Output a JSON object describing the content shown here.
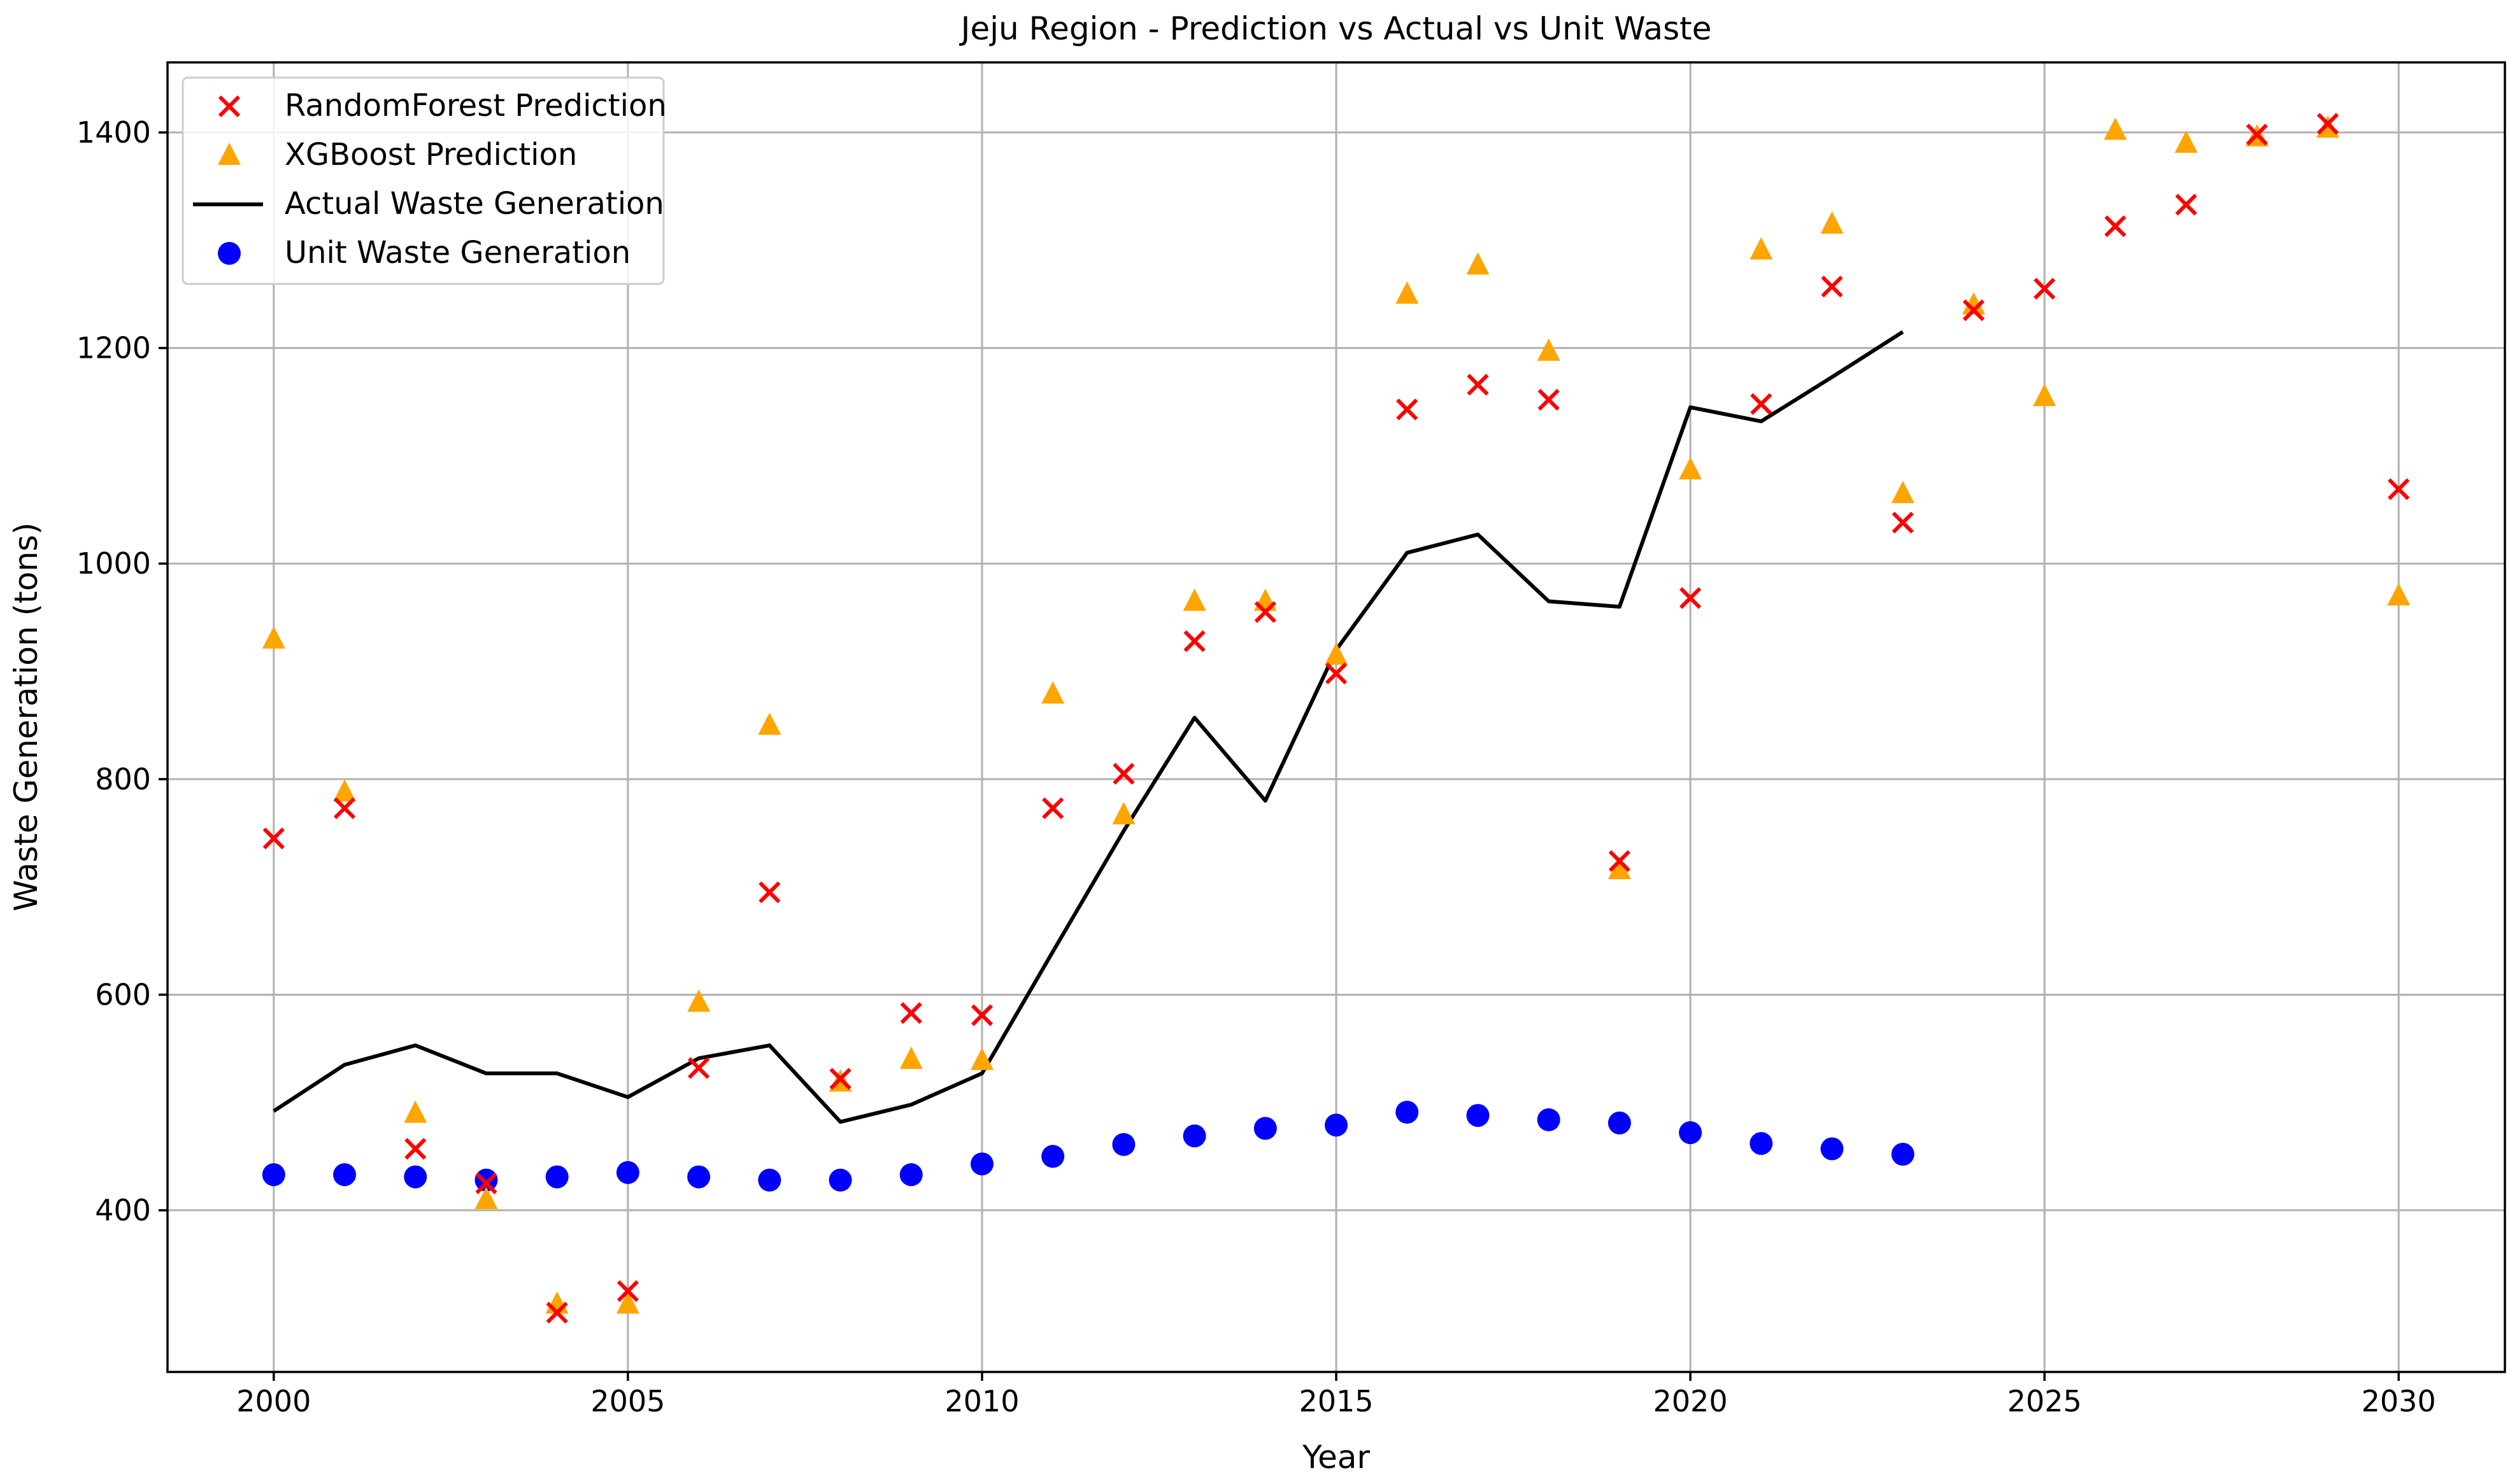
{
  "chart_data": {
    "type": "scatter",
    "title": "Jeju Region - Prediction vs Actual vs Unit Waste",
    "xlabel": "Year",
    "ylabel": "Waste Generation (tons)",
    "xlim": [
      1998.5,
      2031.5
    ],
    "ylim": [
      250,
      1465
    ],
    "x_ticks": [
      2000,
      2005,
      2010,
      2015,
      2020,
      2025,
      2030
    ],
    "y_ticks": [
      400,
      600,
      800,
      1000,
      1200,
      1400
    ],
    "grid": true,
    "legend_position": "top-left",
    "colors": {
      "random_forest": "#ff0000",
      "xgboost": "#ffa500",
      "actual": "#000000",
      "unit": "#0000ff"
    },
    "series": [
      {
        "name": "RandomForest Prediction",
        "marker": "x",
        "x": [
          2000,
          2001,
          2002,
          2003,
          2004,
          2005,
          2006,
          2007,
          2008,
          2009,
          2010,
          2011,
          2012,
          2013,
          2014,
          2015,
          2016,
          2017,
          2018,
          2019,
          2020,
          2021,
          2022,
          2023,
          2024,
          2025,
          2026,
          2027,
          2028,
          2029,
          2030
        ],
        "values": [
          745,
          773,
          457,
          425,
          305,
          325,
          532,
          695,
          522,
          583,
          581,
          773,
          805,
          928,
          955,
          898,
          1143,
          1166,
          1152,
          724,
          968,
          1148,
          1257,
          1038,
          1235,
          1255,
          1313,
          1333,
          1398,
          1408,
          1069
        ]
      },
      {
        "name": "XGBoost Prediction",
        "marker": "triangle",
        "x": [
          2000,
          2001,
          2002,
          2003,
          2004,
          2005,
          2006,
          2007,
          2008,
          2009,
          2010,
          2011,
          2012,
          2013,
          2014,
          2015,
          2016,
          2017,
          2018,
          2019,
          2020,
          2021,
          2022,
          2023,
          2024,
          2025,
          2026,
          2027,
          2028,
          2029,
          2030
        ],
        "values": [
          930,
          788,
          490,
          410,
          313,
          313,
          593,
          850,
          519,
          540,
          539,
          879,
          767,
          965,
          965,
          915,
          1250,
          1277,
          1197,
          716,
          1087,
          1291,
          1315,
          1065,
          1240,
          1155,
          1402,
          1390,
          1396,
          1404,
          970
        ]
      },
      {
        "name": "Actual Waste Generation",
        "marker": "line",
        "x": [
          2000,
          2001,
          2002,
          2003,
          2004,
          2005,
          2006,
          2007,
          2008,
          2009,
          2010,
          2011,
          2012,
          2013,
          2014,
          2015,
          2016,
          2017,
          2018,
          2019,
          2020,
          2021,
          2022,
          2023
        ],
        "values": [
          492,
          535,
          553,
          527,
          527,
          505,
          541,
          553,
          482,
          498,
          527,
          640,
          752,
          857,
          780,
          920,
          1010,
          1027,
          965,
          960,
          1145,
          1132,
          1173,
          1215
        ]
      },
      {
        "name": "Unit Waste Generation",
        "marker": "circle",
        "x": [
          2000,
          2001,
          2002,
          2003,
          2004,
          2005,
          2006,
          2007,
          2008,
          2009,
          2010,
          2011,
          2012,
          2013,
          2014,
          2015,
          2016,
          2017,
          2018,
          2019,
          2020,
          2021,
          2022,
          2023
        ],
        "values": [
          433,
          433,
          431,
          428,
          431,
          435,
          431,
          428,
          428,
          433,
          443,
          450,
          461,
          469,
          476,
          479,
          491,
          488,
          484,
          481,
          472,
          462,
          457,
          452
        ]
      }
    ]
  }
}
